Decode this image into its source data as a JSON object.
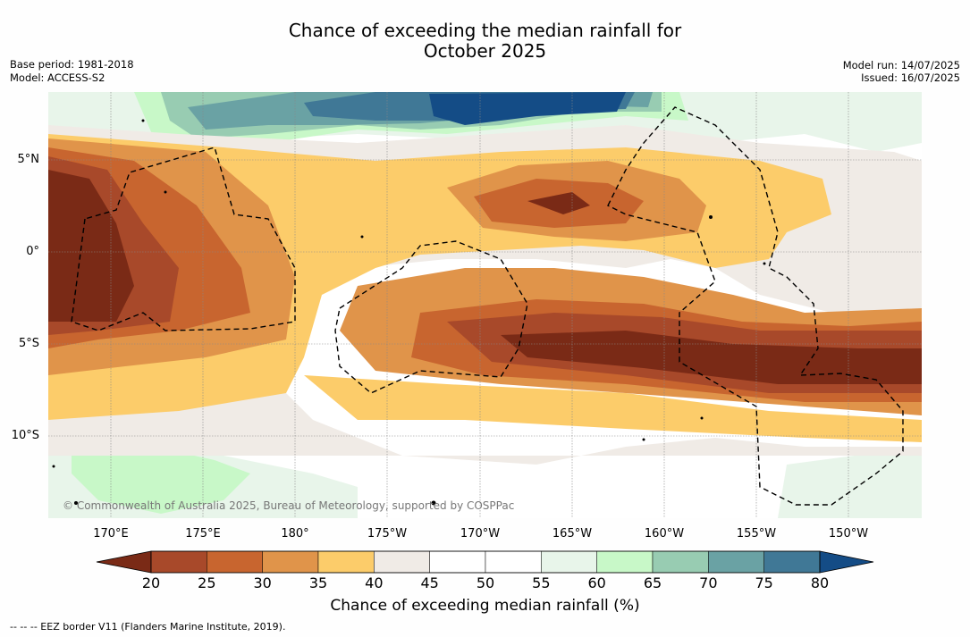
{
  "title_line1": "Chance of exceeding the median rainfall for",
  "title_line2": "October 2025",
  "base_period": "Base period: 1981-2018",
  "model": "Model: ACCESS-S2",
  "model_run": "Model run: 14/07/2025",
  "issued": "Issued: 16/07/2025",
  "lon_labels": [
    "170°E",
    "175°E",
    "180°",
    "175°W",
    "170°W",
    "165°W",
    "160°W",
    "155°W",
    "150°W"
  ],
  "lat_labels": [
    "5°N",
    "0°",
    "5°S",
    "10°S"
  ],
  "colorbar": {
    "ticks": [
      "20",
      "25",
      "30",
      "35",
      "40",
      "45",
      "50",
      "55",
      "60",
      "65",
      "70",
      "75",
      "80"
    ],
    "colors": [
      "#7a2a16",
      "#a8492a",
      "#c8652f",
      "#e0944a",
      "#fccc6a",
      "#f0ebe6",
      "#ffffff",
      "#ffffff",
      "#e8f5ea",
      "#c8f8c8",
      "#98ccb2",
      "#6aa2a4",
      "#407896",
      "#144c86"
    ],
    "label": "Chance of exceeding median rainfall (%)"
  },
  "copyright": "© Commonwealth of Australia 2025, Bureau of Meteorology, supported by COSPPac",
  "eez_note": "--  --  -- EEZ border V11 (Flanders Marine Institute, 2019)."
}
